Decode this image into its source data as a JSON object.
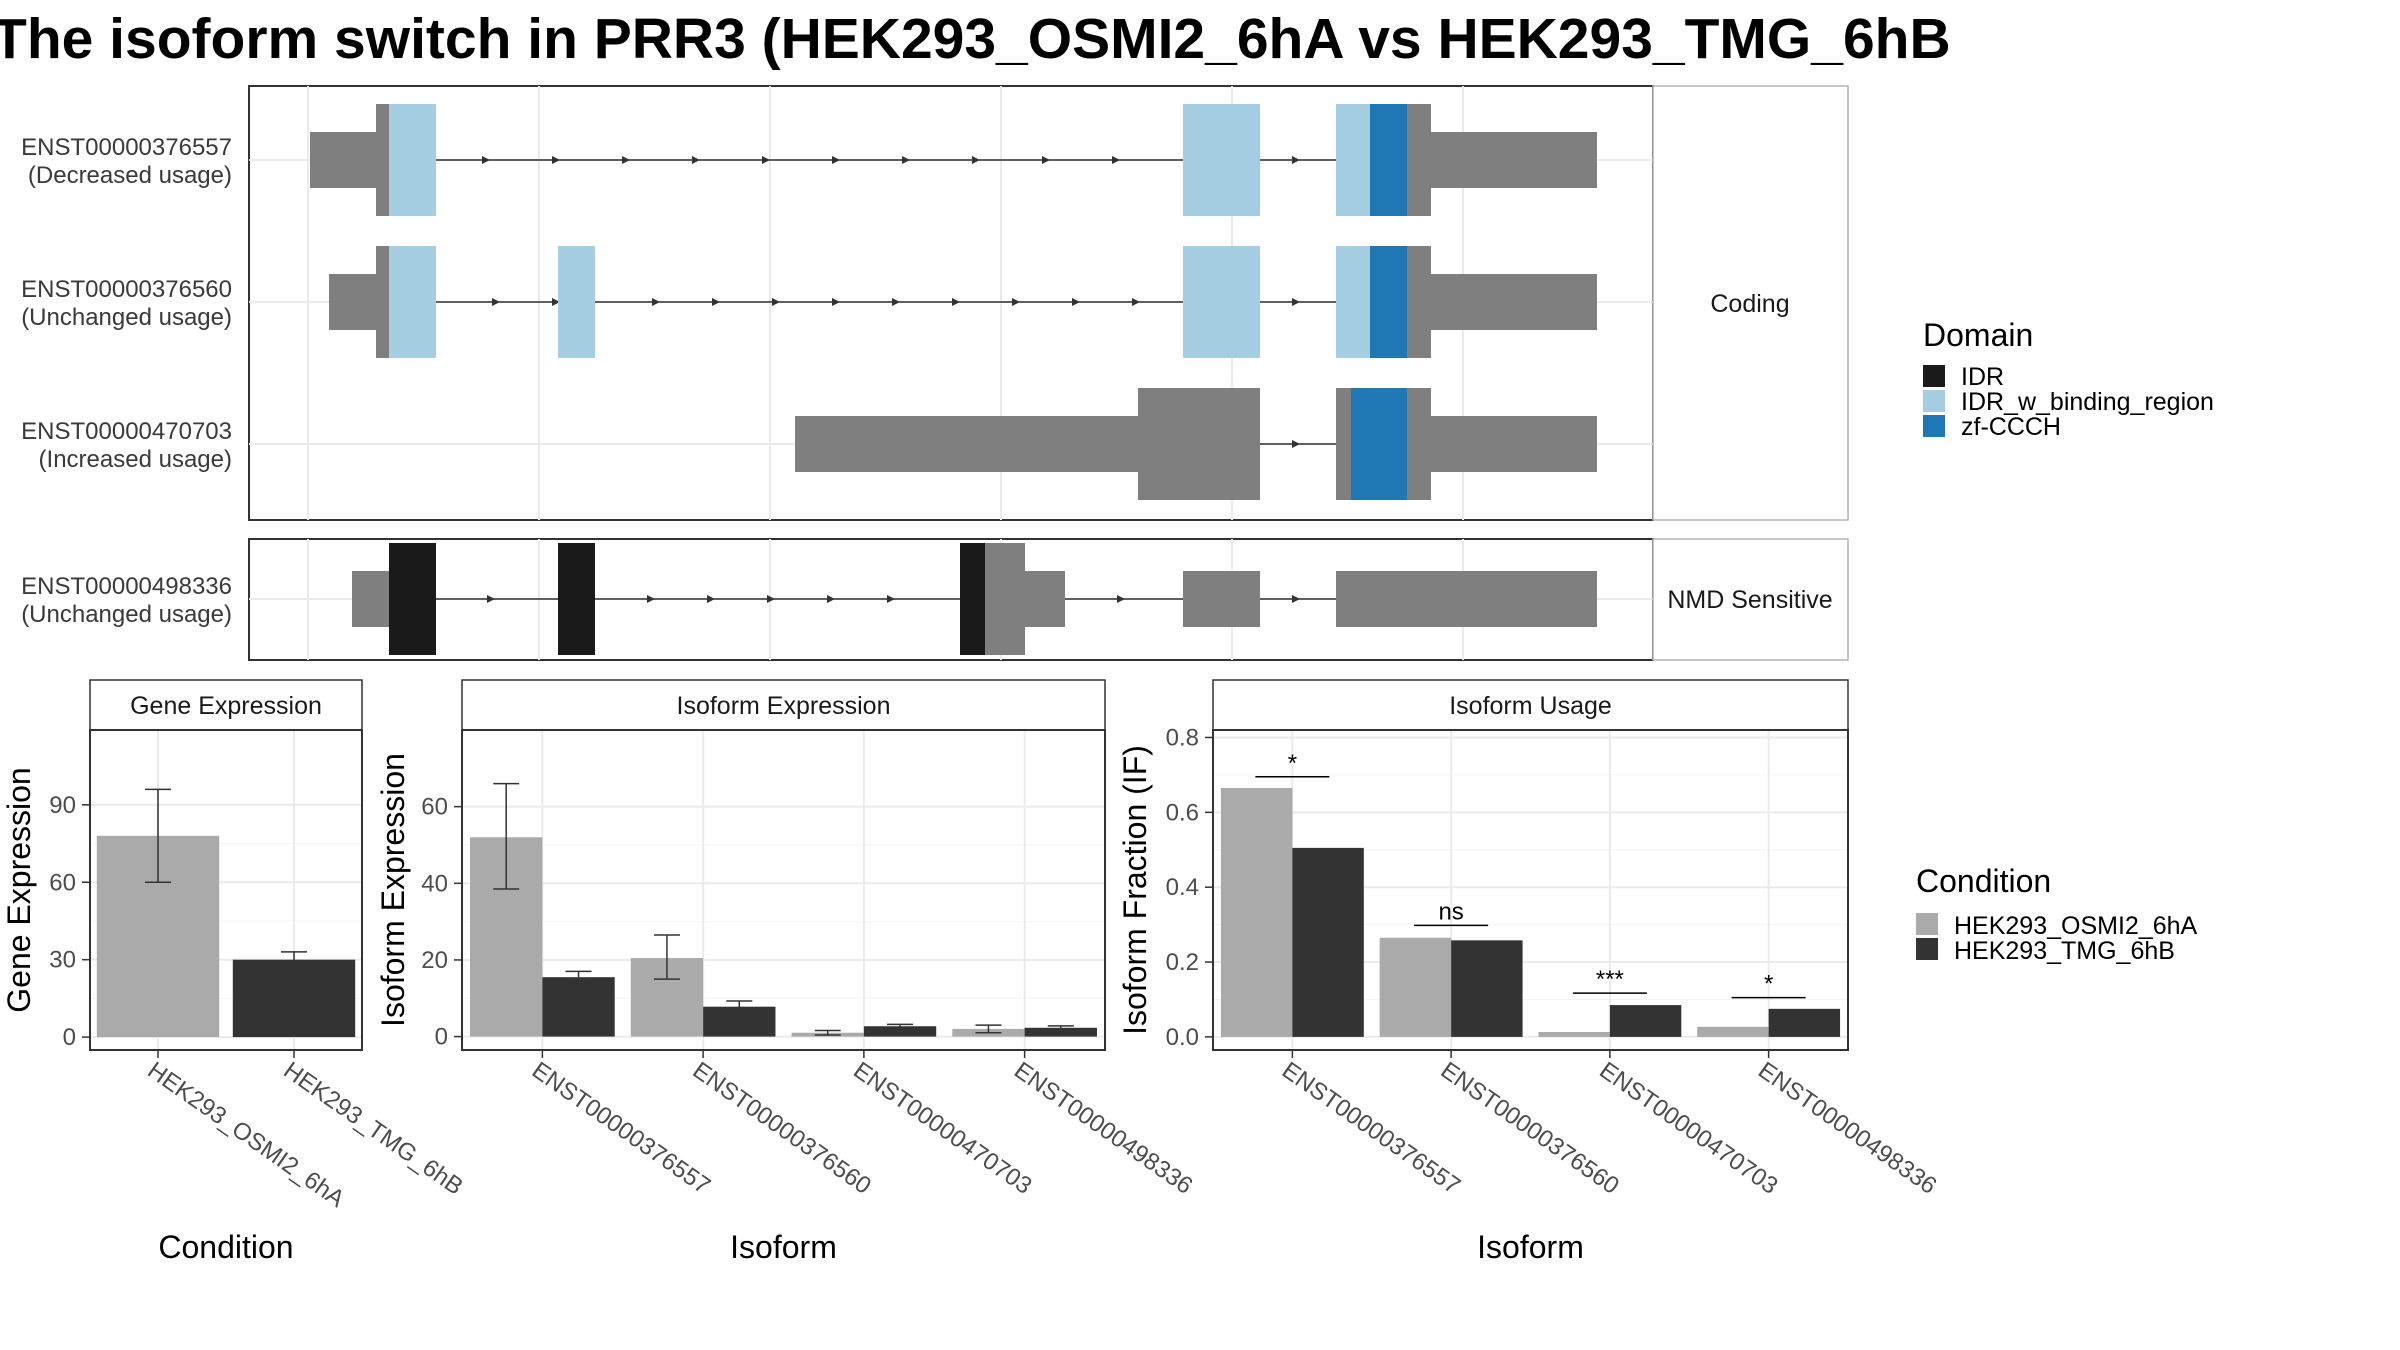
{
  "title": "The isoform switch in PRR3 (HEK293_OSMI2_6hA vs HEK293_TMG_6hB",
  "colors": {
    "exon": "#7f7f7f",
    "IDR": "#1a1a1a",
    "IDR_w_binding_region": "#a6cee3",
    "zf-CCCH": "#1f78b4",
    "cond_A": "#aaaaaa",
    "cond_B": "#333333"
  },
  "structure": {
    "panels": [
      {
        "label": "Coding",
        "isoforms": [
          {
            "id": "ENST00000376557",
            "usage": "(Decreased usage)"
          },
          {
            "id": "ENST00000376560",
            "usage": "(Unchanged usage)"
          },
          {
            "id": "ENST00000470703",
            "usage": "(Increased usage)"
          }
        ]
      },
      {
        "label": "NMD Sensitive",
        "isoforms": [
          {
            "id": "ENST00000498336",
            "usage": "(Unchanged usage)"
          }
        ]
      }
    ]
  },
  "legend_domain": {
    "title": "Domain",
    "items": [
      {
        "label": "IDR",
        "color": "#1a1a1a"
      },
      {
        "label": "IDR_w_binding_region",
        "color": "#a6cee3"
      },
      {
        "label": "zf-CCCH",
        "color": "#1f78b4"
      }
    ]
  },
  "legend_condition": {
    "title": "Condition",
    "items": [
      {
        "label": "HEK293_OSMI2_6hA",
        "color": "#aaaaaa"
      },
      {
        "label": "HEK293_TMG_6hB",
        "color": "#333333"
      }
    ]
  },
  "chart_data": [
    {
      "type": "bar",
      "title": "Gene Expression",
      "xlabel": "Condition",
      "ylabel": "Gene Expression",
      "categories": [
        "HEK293_OSMI2_6hA",
        "HEK293_TMG_6hB"
      ],
      "values": [
        78,
        30
      ],
      "err_low": [
        60,
        27
      ],
      "err_high": [
        96,
        33
      ],
      "ylim": [
        -5,
        119
      ],
      "yticks": [
        0,
        30,
        60,
        90
      ]
    },
    {
      "type": "bar",
      "title": "Isoform Expression",
      "xlabel": "Isoform",
      "ylabel": "Isoform Expression",
      "categories": [
        "ENST00000376557",
        "ENST00000376560",
        "ENST00000470703",
        "ENST00000498336"
      ],
      "series": [
        {
          "name": "HEK293_OSMI2_6hA",
          "values": [
            52,
            20.5,
            1,
            2
          ],
          "err_low": [
            38.5,
            15,
            0.4,
            1
          ],
          "err_high": [
            66,
            26.5,
            1.6,
            3
          ]
        },
        {
          "name": "HEK293_TMG_6hB",
          "values": [
            15.5,
            7.8,
            2.7,
            2.3
          ],
          "err_low": [
            14,
            6.3,
            2.2,
            1.8
          ],
          "err_high": [
            17,
            9.3,
            3.2,
            2.8
          ]
        }
      ],
      "ylim": [
        -3.5,
        80
      ],
      "yticks": [
        0,
        20,
        40,
        60
      ]
    },
    {
      "type": "bar",
      "title": "Isoform Usage",
      "xlabel": "Isoform",
      "ylabel": "Isoform Fraction (IF)",
      "categories": [
        "ENST00000376557",
        "ENST00000376560",
        "ENST00000470703",
        "ENST00000498336"
      ],
      "series": [
        {
          "name": "HEK293_OSMI2_6hA",
          "values": [
            0.665,
            0.265,
            0.013,
            0.027
          ]
        },
        {
          "name": "HEK293_TMG_6hB",
          "values": [
            0.505,
            0.258,
            0.085,
            0.075
          ]
        }
      ],
      "significance": [
        {
          "label": "*",
          "y": 0.695
        },
        {
          "label": "ns",
          "y": 0.298
        },
        {
          "label": "***",
          "y": 0.117
        },
        {
          "label": "*",
          "y": 0.105
        }
      ],
      "ylim": [
        -0.035,
        0.82
      ],
      "yticks": [
        0.0,
        0.2,
        0.4,
        0.6,
        0.8
      ],
      "ytick_labels": [
        "0.0",
        "0.2",
        "0.4",
        "0.6",
        "0.8"
      ]
    }
  ]
}
